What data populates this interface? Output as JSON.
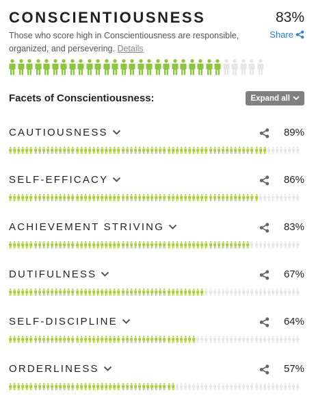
{
  "header": {
    "title": "CONSCIENTIOUSNESS",
    "percent": "83%",
    "percent_value": 83,
    "description": "Those who score high in Conscientiousness are responsible, organized, and persevering.",
    "details_link": "Details",
    "share_label": "Share"
  },
  "facets_section": {
    "heading": "Facets of Conscientiousness:",
    "expand_label": "Expand all"
  },
  "facets": [
    {
      "name": "CAUTIOUSNESS",
      "percent": "89%",
      "value": 89
    },
    {
      "name": "SELF-EFFICACY",
      "percent": "86%",
      "value": 86
    },
    {
      "name": "ACHIEVEMENT STRIVING",
      "percent": "83%",
      "value": 83
    },
    {
      "name": "DUTIFULNESS",
      "percent": "67%",
      "value": 67
    },
    {
      "name": "SELF-DISCIPLINE",
      "percent": "64%",
      "value": 64
    },
    {
      "name": "ORDERLINESS",
      "percent": "57%",
      "value": 57
    }
  ],
  "colors": {
    "filled_main": "#8cc63f",
    "filled_facet": "#a6ce39",
    "empty": "#e6e6e6",
    "link": "#2a7fd4"
  },
  "icons": {
    "share": "share-icon",
    "chevron": "chevron-down-icon",
    "person": "person-icon"
  }
}
